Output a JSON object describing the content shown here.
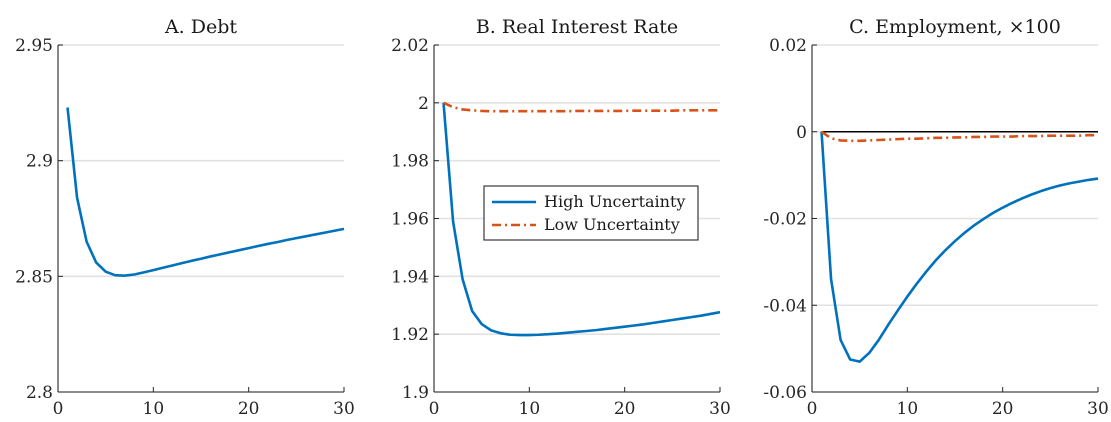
{
  "chart_data": [
    {
      "type": "line",
      "title": "A. Debt",
      "xlim": [
        0,
        30
      ],
      "ylim": [
        2.8,
        2.95
      ],
      "xticks": [
        "0",
        "10",
        "20",
        "30"
      ],
      "yticks": [
        "2.8",
        "2.85",
        "2.9",
        "2.95"
      ],
      "grid": "horizontal",
      "series": [
        {
          "color": "#0072BD",
          "style": "solid",
          "x": [
            1,
            2,
            3,
            4,
            5,
            6,
            7,
            8,
            9,
            10,
            11,
            12,
            13,
            14,
            15,
            16,
            17,
            18,
            19,
            20,
            21,
            22,
            23,
            24,
            25,
            26,
            27,
            28,
            29,
            30
          ],
          "y": [
            2.923,
            2.884,
            2.865,
            2.856,
            2.852,
            2.8505,
            2.8503,
            2.8508,
            2.8517,
            2.8527,
            2.8537,
            2.8547,
            2.8557,
            2.8567,
            2.8576,
            2.8586,
            2.8595,
            2.8604,
            2.8613,
            2.8622,
            2.8631,
            2.864,
            2.8648,
            2.8657,
            2.8665,
            2.8673,
            2.8681,
            2.8689,
            2.8697,
            2.8705
          ]
        }
      ]
    },
    {
      "type": "line",
      "title": "B. Real Interest Rate",
      "xlim": [
        0,
        30
      ],
      "ylim": [
        1.9,
        2.02
      ],
      "xticks": [
        "0",
        "10",
        "20",
        "30"
      ],
      "yticks": [
        "1.9",
        "1.92",
        "1.94",
        "1.96",
        "1.98",
        "2",
        "2.02"
      ],
      "grid": "horizontal",
      "legend": "center-right",
      "series": [
        {
          "name": "High Uncertainty",
          "color": "#0072BD",
          "style": "solid",
          "x": [
            1,
            2,
            3,
            4,
            5,
            6,
            7,
            8,
            9,
            10,
            11,
            12,
            13,
            14,
            15,
            16,
            17,
            18,
            19,
            20,
            21,
            22,
            23,
            24,
            25,
            26,
            27,
            28,
            29,
            30
          ],
          "y": [
            2.0,
            1.959,
            1.939,
            1.928,
            1.9235,
            1.9213,
            1.9203,
            1.9198,
            1.9197,
            1.9197,
            1.9198,
            1.92,
            1.9202,
            1.9205,
            1.9208,
            1.9211,
            1.9214,
            1.9218,
            1.9222,
            1.9226,
            1.923,
            1.9234,
            1.9239,
            1.9244,
            1.9249,
            1.9254,
            1.9259,
            1.9264,
            1.927,
            1.9276
          ]
        },
        {
          "name": "Low Uncertainty",
          "color": "#D95319",
          "style": "dash-dot",
          "x": [
            1,
            2,
            3,
            4,
            5,
            6,
            7,
            8,
            9,
            10,
            11,
            12,
            13,
            14,
            15,
            16,
            17,
            18,
            19,
            20,
            21,
            22,
            23,
            24,
            25,
            26,
            27,
            28,
            29,
            30
          ],
          "y": [
            2.0,
            1.9985,
            1.9977,
            1.9974,
            1.9972,
            1.9971,
            1.9971,
            1.9971,
            1.9971,
            1.9971,
            1.9971,
            1.9971,
            1.9971,
            1.9971,
            1.9972,
            1.9972,
            1.9972,
            1.9972,
            1.9972,
            1.9972,
            1.9973,
            1.9973,
            1.9973,
            1.9973,
            1.9973,
            1.9974,
            1.9974,
            1.9974,
            1.9974,
            1.9974
          ]
        }
      ]
    },
    {
      "type": "line",
      "title": "C. Employment, ×100",
      "xlim": [
        0,
        30
      ],
      "ylim": [
        -0.06,
        0.02
      ],
      "xticks": [
        "0",
        "10",
        "20",
        "30"
      ],
      "yticks": [
        "-0.06",
        "-0.04",
        "-0.02",
        "0",
        "0.02"
      ],
      "grid": "horizontal",
      "zero_line": true,
      "series": [
        {
          "color": "#0072BD",
          "style": "solid",
          "x": [
            1,
            2,
            3,
            4,
            5,
            6,
            7,
            8,
            9,
            10,
            11,
            12,
            13,
            14,
            15,
            16,
            17,
            18,
            19,
            20,
            21,
            22,
            23,
            24,
            25,
            26,
            27,
            28,
            29,
            30
          ],
          "y": [
            0.0,
            -0.034,
            -0.048,
            -0.0525,
            -0.053,
            -0.051,
            -0.048,
            -0.0445,
            -0.0412,
            -0.038,
            -0.035,
            -0.0322,
            -0.0296,
            -0.0273,
            -0.0252,
            -0.0233,
            -0.0216,
            -0.0201,
            -0.0187,
            -0.0175,
            -0.0164,
            -0.0154,
            -0.0145,
            -0.0137,
            -0.013,
            -0.0124,
            -0.0119,
            -0.0115,
            -0.0111,
            -0.0108
          ]
        },
        {
          "color": "#D95319",
          "style": "dash-dot",
          "x": [
            1,
            2,
            3,
            4,
            5,
            6,
            7,
            8,
            9,
            10,
            11,
            12,
            13,
            14,
            15,
            16,
            17,
            18,
            19,
            20,
            21,
            22,
            23,
            24,
            25,
            26,
            27,
            28,
            29,
            30
          ],
          "y": [
            0.0,
            -0.0015,
            -0.002,
            -0.0021,
            -0.0021,
            -0.002,
            -0.0019,
            -0.0018,
            -0.0017,
            -0.0016,
            -0.0016,
            -0.0015,
            -0.0014,
            -0.0014,
            -0.0013,
            -0.0013,
            -0.0012,
            -0.0012,
            -0.0011,
            -0.0011,
            -0.0011,
            -0.001,
            -0.001,
            -0.001,
            -0.0009,
            -0.0009,
            -0.0009,
            -0.0009,
            -0.0008,
            -0.0008
          ]
        }
      ]
    }
  ]
}
